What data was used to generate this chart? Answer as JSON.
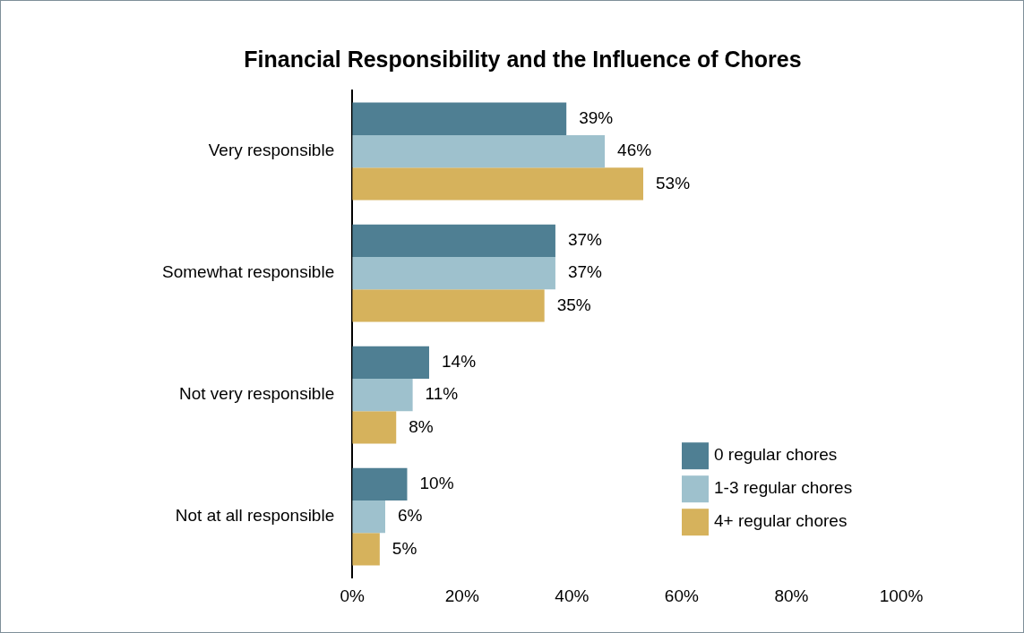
{
  "chart_data": {
    "type": "bar",
    "orientation": "horizontal",
    "title": "Financial Responsibility and the Influence of Chores",
    "categories": [
      "Very responsible",
      "Somewhat responsible",
      "Not very responsible",
      "Not at all responsible"
    ],
    "series": [
      {
        "name": "0 regular chores",
        "color": "#4f7f93",
        "values": [
          39,
          37,
          14,
          10
        ],
        "value_labels": [
          "39%",
          "37%",
          "14%",
          "10%"
        ]
      },
      {
        "name": "1-3 regular chores",
        "color": "#9ec1cd",
        "values": [
          46,
          37,
          11,
          6
        ],
        "value_labels": [
          "46%",
          "37%",
          "11%",
          "6%"
        ]
      },
      {
        "name": "4+ regular chores",
        "color": "#d6b25c",
        "values": [
          53,
          35,
          8,
          5
        ],
        "value_labels": [
          "53%",
          "35%",
          "8%",
          "5%"
        ]
      }
    ],
    "xlim": [
      0,
      100
    ],
    "xticks": [
      {
        "value": 0,
        "label": "0%"
      },
      {
        "value": 20,
        "label": "20%"
      },
      {
        "value": 40,
        "label": "40%"
      },
      {
        "value": 60,
        "label": "60%"
      },
      {
        "value": 80,
        "label": "80%"
      },
      {
        "value": 100,
        "label": "100%"
      }
    ],
    "grid": false,
    "legend": "bottom right"
  }
}
